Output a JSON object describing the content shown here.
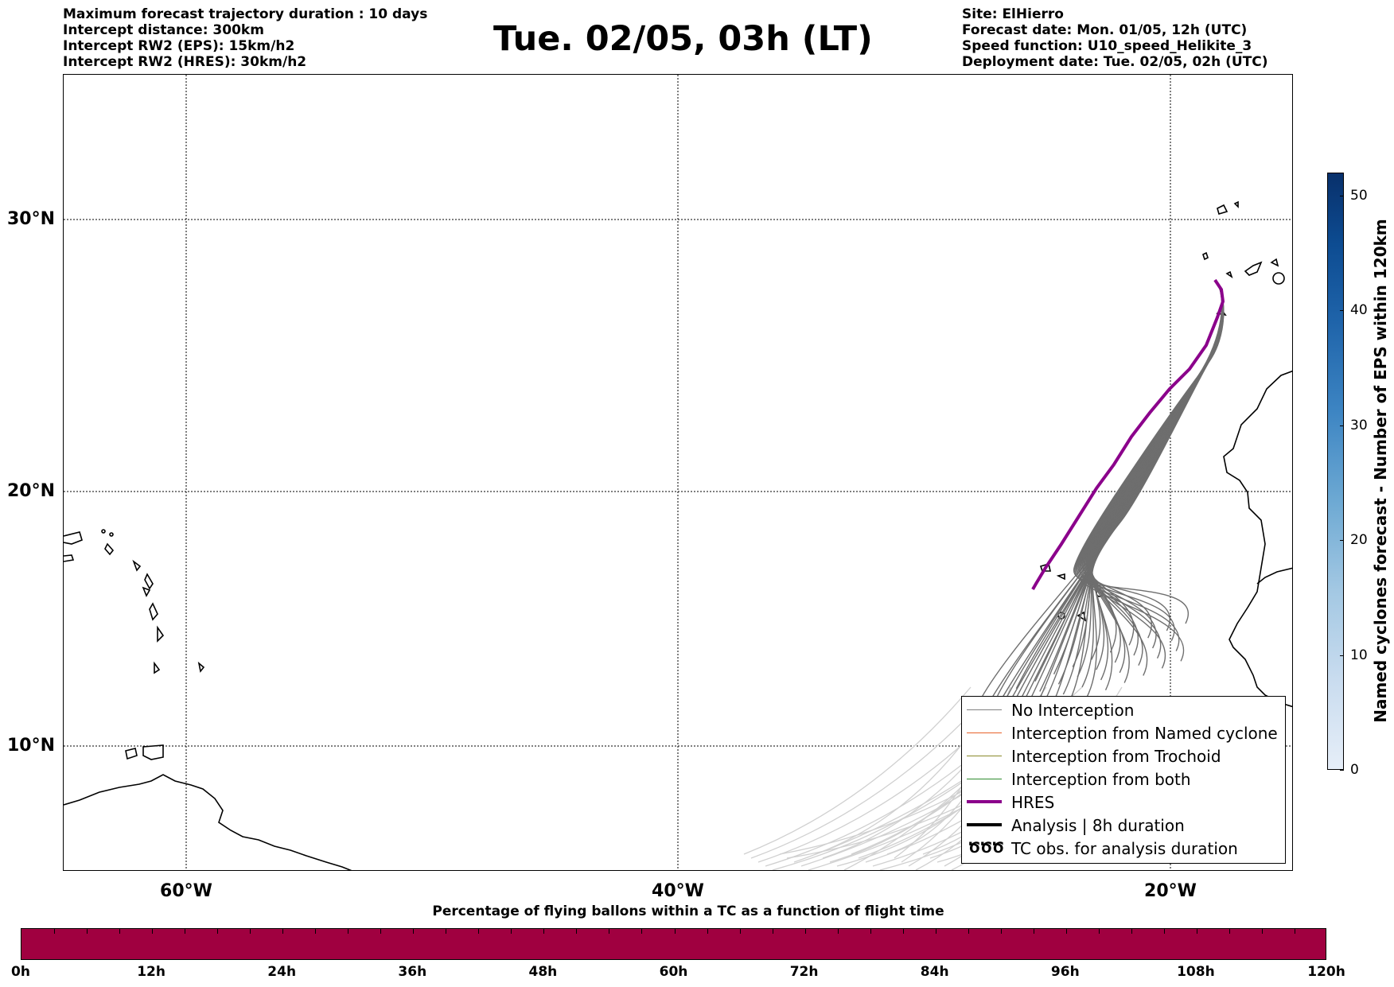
{
  "header_left": [
    "Maximum forecast trajectory duration : 10 days",
    "Intercept distance: 300km",
    "Intercept RW2 (EPS):  15km/h2",
    "Intercept RW2 (HRES): 30km/h2"
  ],
  "title": "Tue. 02/05, 03h (LT)",
  "header_right": [
    "Site: ElHierro",
    "Forecast date: Mon. 01/05, 12h (UTC)",
    "Speed function: U10_speed_Helikite_3",
    "Deployment date: Tue. 02/05, 02h (UTC)"
  ],
  "map": {
    "lat_labels": [
      "30°N",
      "20°N",
      "10°N"
    ],
    "lon_labels": [
      "60°W",
      "40°W",
      "20°W"
    ],
    "gridlines": true,
    "legend": {
      "items": [
        {
          "label": "No Interception",
          "color": "#808080",
          "style": "thin"
        },
        {
          "label": "Interception from Named cyclone",
          "color": "#e8622a",
          "style": "thin"
        },
        {
          "label": "Interception from Trochoid",
          "color": "#8a8a2a",
          "style": "thin"
        },
        {
          "label": "Interception from both",
          "color": "#2e8b2e",
          "style": "thin"
        },
        {
          "label": "HRES",
          "color": "#8b008b",
          "style": "thick"
        },
        {
          "label": "Analysis | 8h duration",
          "color": "#000000",
          "style": "thick"
        },
        {
          "label": "TC obs. for analysis duration",
          "color": "#000000",
          "style": "symbol",
          "symbol": "ԾԾԾ"
        }
      ]
    },
    "colors": {
      "ensemble": "#6e6e6e",
      "ensemble_faded": "#d0d0d0",
      "hres": "#8b008b",
      "coast": "#000000"
    }
  },
  "vertical_colorbar": {
    "label": "Named cyclones forecast - Number of EPS within 120km",
    "ticks": [
      "0",
      "10",
      "20",
      "30",
      "40",
      "50"
    ],
    "max": 52
  },
  "horizontal_colorbar": {
    "title": "Percentage of flying ballons within a TC as a function of flight time",
    "ticks": [
      "0h",
      "12h",
      "24h",
      "36h",
      "48h",
      "60h",
      "72h",
      "84h",
      "96h",
      "108h",
      "120h"
    ],
    "color": "#a00040"
  }
}
